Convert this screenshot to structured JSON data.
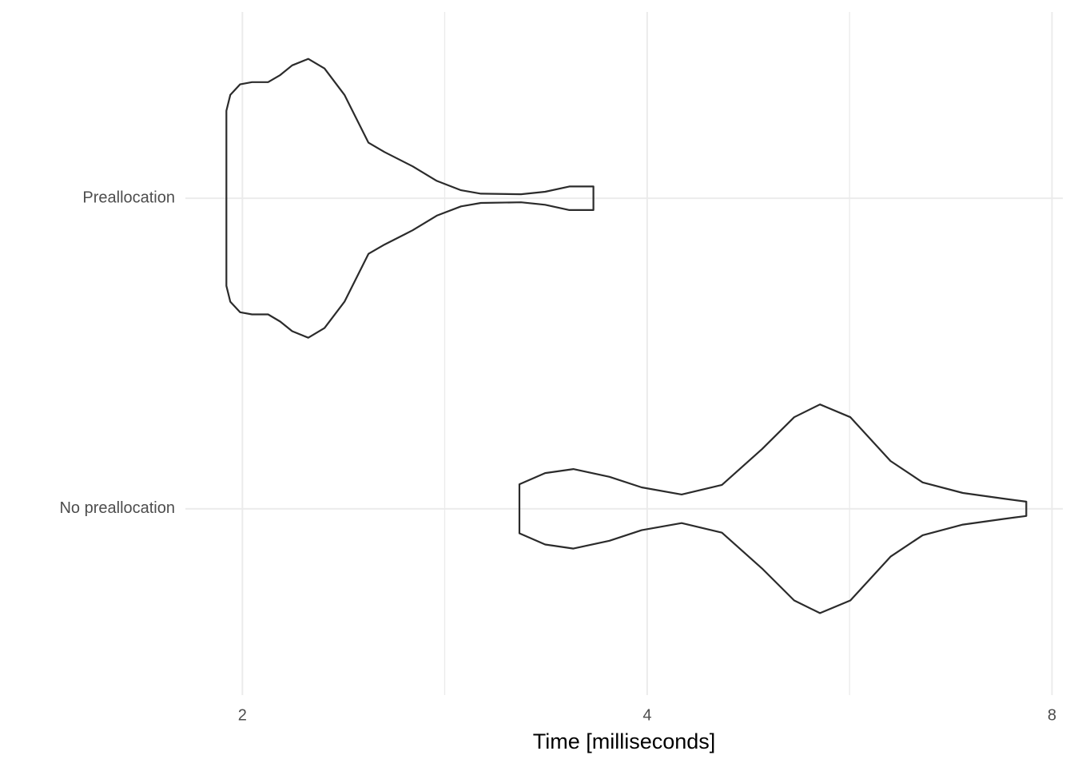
{
  "chart_data": {
    "type": "violin",
    "x_label": "Time [milliseconds]",
    "x_scale": "log",
    "categories": [
      "No preallocation",
      "Preallocation"
    ],
    "series": [
      {
        "name": "No preallocation",
        "color": "#2b2b2b",
        "x": [
          3.214,
          3.359,
          3.525,
          3.75,
          3.962,
          4.243,
          4.546,
          4.869,
          5.145,
          5.377,
          5.665,
          6.068,
          6.411,
          6.868,
          7.356,
          7.656
        ],
        "half_width": [
          0.079,
          0.115,
          0.128,
          0.103,
          0.069,
          0.046,
          0.077,
          0.192,
          0.295,
          0.336,
          0.295,
          0.154,
          0.085,
          0.051,
          0.033,
          0.023
        ]
      },
      {
        "name": "Preallocation",
        "color": "#2b2b2b",
        "x": [
          1.946,
          1.959,
          1.992,
          2.033,
          2.09,
          2.134,
          2.178,
          2.239,
          2.302,
          2.382,
          2.482,
          2.551,
          2.677,
          2.79,
          2.908,
          3.009,
          3.223,
          3.359,
          3.501,
          3.648
        ],
        "half_width": [
          0.282,
          0.333,
          0.367,
          0.374,
          0.374,
          0.397,
          0.428,
          0.449,
          0.418,
          0.333,
          0.179,
          0.149,
          0.103,
          0.056,
          0.026,
          0.015,
          0.013,
          0.021,
          0.038,
          0.038
        ]
      }
    ],
    "xlim": [
      1.814,
      8.15
    ],
    "xticks": [
      2,
      4,
      8
    ],
    "minor_xticks": [
      2.828,
      5.657
    ],
    "ylim": [
      0.4,
      2.6
    ],
    "grid": true
  }
}
